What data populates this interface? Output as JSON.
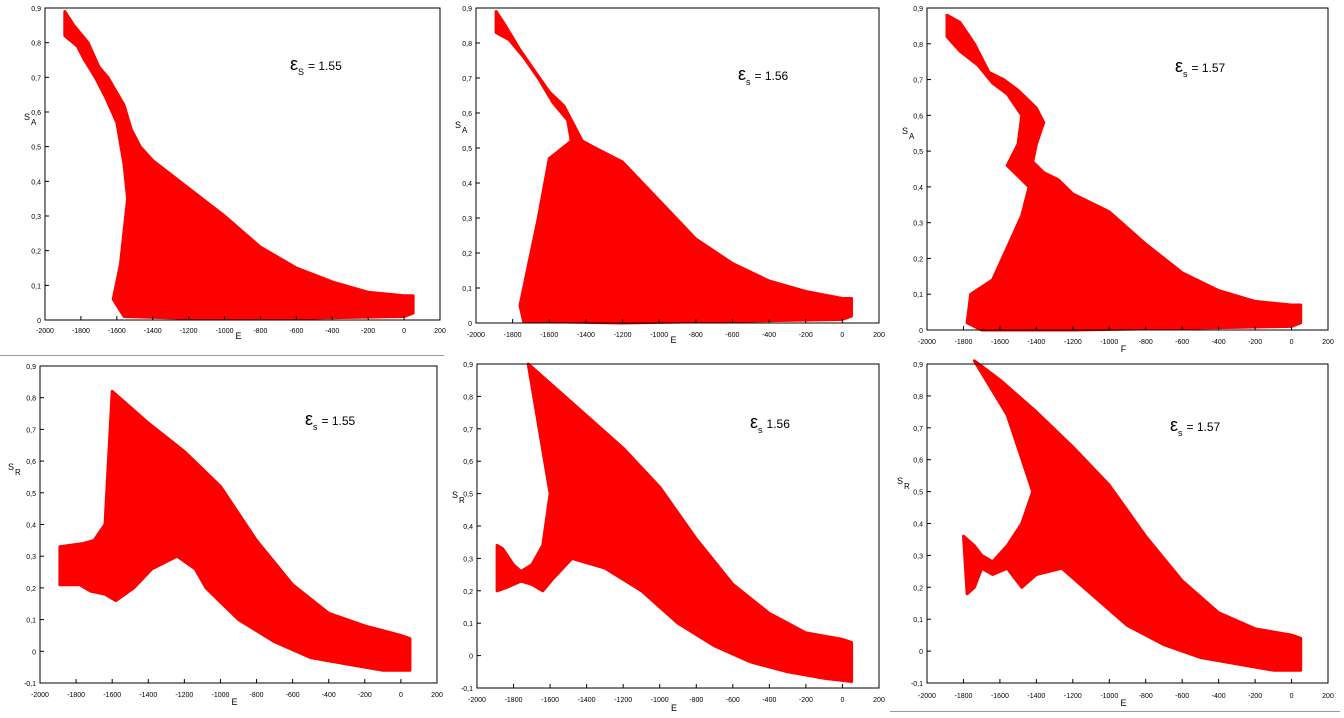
{
  "chart_data": [
    {
      "type": "area",
      "panel": "top-left",
      "xlabel": "E",
      "ylabel_base": "S",
      "ylabel_sub": "A",
      "annotation": {
        "symbol": "ε",
        "sub": "S",
        "text": "= 1.55"
      },
      "xlim": [
        -2000,
        200
      ],
      "ylim": [
        0,
        0.9
      ],
      "xticks": [
        -2000,
        -1800,
        -1600,
        -1400,
        -1200,
        -1000,
        -800,
        -600,
        -400,
        -200,
        0,
        200
      ],
      "yticks": [
        0,
        0.1,
        0.2,
        0.3,
        0.4,
        0.5,
        0.6,
        0.7,
        0.8,
        0.9
      ],
      "color": "#ff0000",
      "upper": [
        [
          -1890,
          0.89
        ],
        [
          -1840,
          0.85
        ],
        [
          -1760,
          0.8
        ],
        [
          -1700,
          0.73
        ],
        [
          -1650,
          0.7
        ],
        [
          -1560,
          0.62
        ],
        [
          -1520,
          0.55
        ],
        [
          -1470,
          0.5
        ],
        [
          -1400,
          0.46
        ],
        [
          -1300,
          0.42
        ],
        [
          -1200,
          0.38
        ],
        [
          -1000,
          0.3
        ],
        [
          -800,
          0.21
        ],
        [
          -600,
          0.15
        ],
        [
          -400,
          0.11
        ],
        [
          -200,
          0.08
        ],
        [
          0,
          0.07
        ],
        [
          50,
          0.07
        ]
      ],
      "lower": [
        [
          -1890,
          0.82
        ],
        [
          -1820,
          0.79
        ],
        [
          -1780,
          0.75
        ],
        [
          -1720,
          0.7
        ],
        [
          -1660,
          0.64
        ],
        [
          -1600,
          0.57
        ],
        [
          -1560,
          0.45
        ],
        [
          -1540,
          0.35
        ],
        [
          -1580,
          0.16
        ],
        [
          -1620,
          0.06
        ],
        [
          -1560,
          0.01
        ],
        [
          -1200,
          0.005
        ],
        [
          -600,
          0.005
        ],
        [
          0,
          0.01
        ],
        [
          50,
          0.02
        ]
      ]
    },
    {
      "type": "area",
      "panel": "top-middle",
      "xlabel": "E",
      "ylabel_base": "S",
      "ylabel_sub": "A",
      "annotation": {
        "symbol": "ε",
        "sub": "s",
        "text": "= 1.56"
      },
      "xlim": [
        -2000,
        200
      ],
      "ylim": [
        0,
        0.9
      ],
      "xticks": [
        -2000,
        -1800,
        -1600,
        -1400,
        -1200,
        -1000,
        -800,
        -600,
        -400,
        -200,
        0,
        200
      ],
      "yticks": [
        0,
        0.1,
        0.2,
        0.3,
        0.4,
        0.5,
        0.6,
        0.7,
        0.8,
        0.9
      ],
      "color": "#ff0000",
      "upper": [
        [
          -1890,
          0.89
        ],
        [
          -1840,
          0.85
        ],
        [
          -1760,
          0.78
        ],
        [
          -1680,
          0.72
        ],
        [
          -1600,
          0.66
        ],
        [
          -1520,
          0.62
        ],
        [
          -1460,
          0.56
        ],
        [
          -1420,
          0.52
        ],
        [
          -1350,
          0.5
        ],
        [
          -1200,
          0.46
        ],
        [
          -1000,
          0.35
        ],
        [
          -800,
          0.24
        ],
        [
          -600,
          0.17
        ],
        [
          -400,
          0.12
        ],
        [
          -200,
          0.09
        ],
        [
          0,
          0.07
        ],
        [
          50,
          0.07
        ]
      ],
      "lower": [
        [
          -1890,
          0.83
        ],
        [
          -1820,
          0.81
        ],
        [
          -1740,
          0.76
        ],
        [
          -1660,
          0.7
        ],
        [
          -1580,
          0.63
        ],
        [
          -1500,
          0.58
        ],
        [
          -1480,
          0.52
        ],
        [
          -1600,
          0.47
        ],
        [
          -1660,
          0.3
        ],
        [
          -1720,
          0.15
        ],
        [
          -1760,
          0.05
        ],
        [
          -1740,
          0.005
        ],
        [
          -1200,
          0.0
        ],
        [
          0,
          0.01
        ],
        [
          50,
          0.02
        ]
      ]
    },
    {
      "type": "area",
      "panel": "top-right",
      "xlabel": "F",
      "ylabel_base": "S",
      "ylabel_sub": "A",
      "annotation": {
        "symbol": "ε",
        "sub": "s",
        "text": "= 1.57"
      },
      "xlim": [
        -2000,
        200
      ],
      "ylim": [
        0,
        0.9
      ],
      "xticks": [
        -2000,
        -1800,
        -1600,
        -1400,
        -1200,
        -1000,
        -800,
        -600,
        -400,
        -200,
        0,
        200
      ],
      "yticks": [
        0,
        0.1,
        0.2,
        0.3,
        0.4,
        0.5,
        0.6,
        0.7,
        0.8,
        0.9
      ],
      "color": "#ff0000",
      "upper": [
        [
          -1890,
          0.88
        ],
        [
          -1820,
          0.86
        ],
        [
          -1740,
          0.8
        ],
        [
          -1660,
          0.72
        ],
        [
          -1580,
          0.7
        ],
        [
          -1500,
          0.67
        ],
        [
          -1440,
          0.64
        ],
        [
          -1400,
          0.62
        ],
        [
          -1360,
          0.58
        ],
        [
          -1400,
          0.52
        ],
        [
          -1420,
          0.47
        ],
        [
          -1360,
          0.44
        ],
        [
          -1280,
          0.42
        ],
        [
          -1200,
          0.38
        ],
        [
          -1000,
          0.33
        ],
        [
          -800,
          0.24
        ],
        [
          -600,
          0.16
        ],
        [
          -400,
          0.11
        ],
        [
          -200,
          0.08
        ],
        [
          0,
          0.07
        ],
        [
          50,
          0.07
        ]
      ],
      "lower": [
        [
          -1890,
          0.82
        ],
        [
          -1820,
          0.78
        ],
        [
          -1720,
          0.74
        ],
        [
          -1640,
          0.69
        ],
        [
          -1560,
          0.66
        ],
        [
          -1480,
          0.6
        ],
        [
          -1500,
          0.52
        ],
        [
          -1560,
          0.46
        ],
        [
          -1440,
          0.4
        ],
        [
          -1480,
          0.32
        ],
        [
          -1640,
          0.14
        ],
        [
          -1760,
          0.1
        ],
        [
          -1780,
          0.02
        ],
        [
          -1700,
          0.0
        ],
        [
          -1200,
          0.0
        ],
        [
          0,
          0.01
        ],
        [
          50,
          0.02
        ]
      ]
    },
    {
      "type": "area",
      "panel": "bottom-left",
      "xlabel": "E",
      "ylabel_base": "S",
      "ylabel_sub": "R",
      "annotation": {
        "symbol": "ε",
        "sub": "s",
        "text": "= 1.55"
      },
      "xlim": [
        -2000,
        200
      ],
      "ylim": [
        -0.1,
        0.9
      ],
      "xticks": [
        -2000,
        -1800,
        -1600,
        -1400,
        -1200,
        -1000,
        -800,
        -600,
        -400,
        -200,
        0,
        200
      ],
      "yticks": [
        -0.1,
        0,
        0.1,
        0.2,
        0.3,
        0.4,
        0.5,
        0.6,
        0.7,
        0.8,
        0.9
      ],
      "color": "#ff0000",
      "upper": [
        [
          -1890,
          0.33
        ],
        [
          -1760,
          0.34
        ],
        [
          -1700,
          0.35
        ],
        [
          -1640,
          0.4
        ],
        [
          -1600,
          0.82
        ],
        [
          -1540,
          0.79
        ],
        [
          -1400,
          0.72
        ],
        [
          -1200,
          0.63
        ],
        [
          -1000,
          0.52
        ],
        [
          -800,
          0.35
        ],
        [
          -600,
          0.21
        ],
        [
          -400,
          0.12
        ],
        [
          -200,
          0.08
        ],
        [
          0,
          0.05
        ],
        [
          50,
          0.04
        ]
      ],
      "lower": [
        [
          -1890,
          0.21
        ],
        [
          -1780,
          0.21
        ],
        [
          -1720,
          0.19
        ],
        [
          -1640,
          0.18
        ],
        [
          -1580,
          0.16
        ],
        [
          -1480,
          0.2
        ],
        [
          -1380,
          0.26
        ],
        [
          -1240,
          0.3
        ],
        [
          -1140,
          0.26
        ],
        [
          -1080,
          0.2
        ],
        [
          -900,
          0.1
        ],
        [
          -700,
          0.03
        ],
        [
          -500,
          -0.02
        ],
        [
          -300,
          -0.04
        ],
        [
          -100,
          -0.06
        ],
        [
          50,
          -0.06
        ]
      ]
    },
    {
      "type": "area",
      "panel": "bottom-middle",
      "xlabel": "E",
      "ylabel_base": "S",
      "ylabel_sub": "R",
      "annotation": {
        "symbol": "ε",
        "sub": "s",
        "text": "1.56"
      },
      "xlim": [
        -2000,
        200
      ],
      "ylim": [
        -0.1,
        0.9
      ],
      "xticks": [
        -2000,
        -1800,
        -1600,
        -1400,
        -1200,
        -1000,
        -800,
        -600,
        -400,
        -200,
        0,
        200
      ],
      "yticks": [
        -0.1,
        0,
        0.1,
        0.2,
        0.3,
        0.4,
        0.5,
        0.6,
        0.7,
        0.8,
        0.9
      ],
      "color": "#ff0000",
      "upper": [
        [
          -1890,
          0.34
        ],
        [
          -1860,
          0.33
        ],
        [
          -1800,
          0.28
        ],
        [
          -1760,
          0.26
        ],
        [
          -1700,
          0.28
        ],
        [
          -1640,
          0.34
        ],
        [
          -1600,
          0.5
        ],
        [
          -1720,
          0.9
        ],
        [
          -1600,
          0.84
        ],
        [
          -1400,
          0.74
        ],
        [
          -1200,
          0.64
        ],
        [
          -1000,
          0.52
        ],
        [
          -800,
          0.36
        ],
        [
          -600,
          0.22
        ],
        [
          -400,
          0.13
        ],
        [
          -200,
          0.07
        ],
        [
          0,
          0.05
        ],
        [
          50,
          0.04
        ]
      ],
      "lower": [
        [
          -1890,
          0.2
        ],
        [
          -1840,
          0.21
        ],
        [
          -1760,
          0.23
        ],
        [
          -1700,
          0.22
        ],
        [
          -1640,
          0.2
        ],
        [
          -1580,
          0.24
        ],
        [
          -1480,
          0.3
        ],
        [
          -1300,
          0.27
        ],
        [
          -1100,
          0.2
        ],
        [
          -900,
          0.1
        ],
        [
          -700,
          0.03
        ],
        [
          -500,
          -0.02
        ],
        [
          -300,
          -0.05
        ],
        [
          -100,
          -0.07
        ],
        [
          50,
          -0.08
        ]
      ]
    },
    {
      "type": "area",
      "panel": "bottom-right",
      "xlabel": "E",
      "ylabel_base": "S",
      "ylabel_sub": "R",
      "annotation": {
        "symbol": "ε",
        "sub": "s",
        "text": "= 1.57"
      },
      "xlim": [
        -2000,
        200
      ],
      "ylim": [
        -0.1,
        0.9
      ],
      "xticks": [
        -2000,
        -1800,
        -1600,
        -1400,
        -1200,
        -1000,
        -800,
        -600,
        -400,
        -200,
        0,
        200
      ],
      "yticks": [
        -0.1,
        0,
        0.1,
        0.2,
        0.3,
        0.4,
        0.5,
        0.6,
        0.7,
        0.8,
        0.9
      ],
      "color": "#ff0000",
      "upper": [
        [
          -1800,
          0.36
        ],
        [
          -1740,
          0.33
        ],
        [
          -1700,
          0.3
        ],
        [
          -1640,
          0.28
        ],
        [
          -1560,
          0.33
        ],
        [
          -1480,
          0.4
        ],
        [
          -1420,
          0.5
        ],
        [
          -1560,
          0.74
        ],
        [
          -1740,
          0.91
        ],
        [
          -1600,
          0.85
        ],
        [
          -1400,
          0.75
        ],
        [
          -1200,
          0.64
        ],
        [
          -1000,
          0.52
        ],
        [
          -800,
          0.36
        ],
        [
          -600,
          0.22
        ],
        [
          -400,
          0.12
        ],
        [
          -200,
          0.07
        ],
        [
          0,
          0.05
        ],
        [
          50,
          0.04
        ]
      ],
      "lower": [
        [
          -1780,
          0.18
        ],
        [
          -1740,
          0.2
        ],
        [
          -1700,
          0.26
        ],
        [
          -1640,
          0.24
        ],
        [
          -1560,
          0.26
        ],
        [
          -1480,
          0.2
        ],
        [
          -1400,
          0.24
        ],
        [
          -1260,
          0.26
        ],
        [
          -1100,
          0.18
        ],
        [
          -900,
          0.08
        ],
        [
          -700,
          0.02
        ],
        [
          -500,
          -0.02
        ],
        [
          -300,
          -0.04
        ],
        [
          -100,
          -0.06
        ],
        [
          50,
          -0.06
        ]
      ]
    }
  ]
}
